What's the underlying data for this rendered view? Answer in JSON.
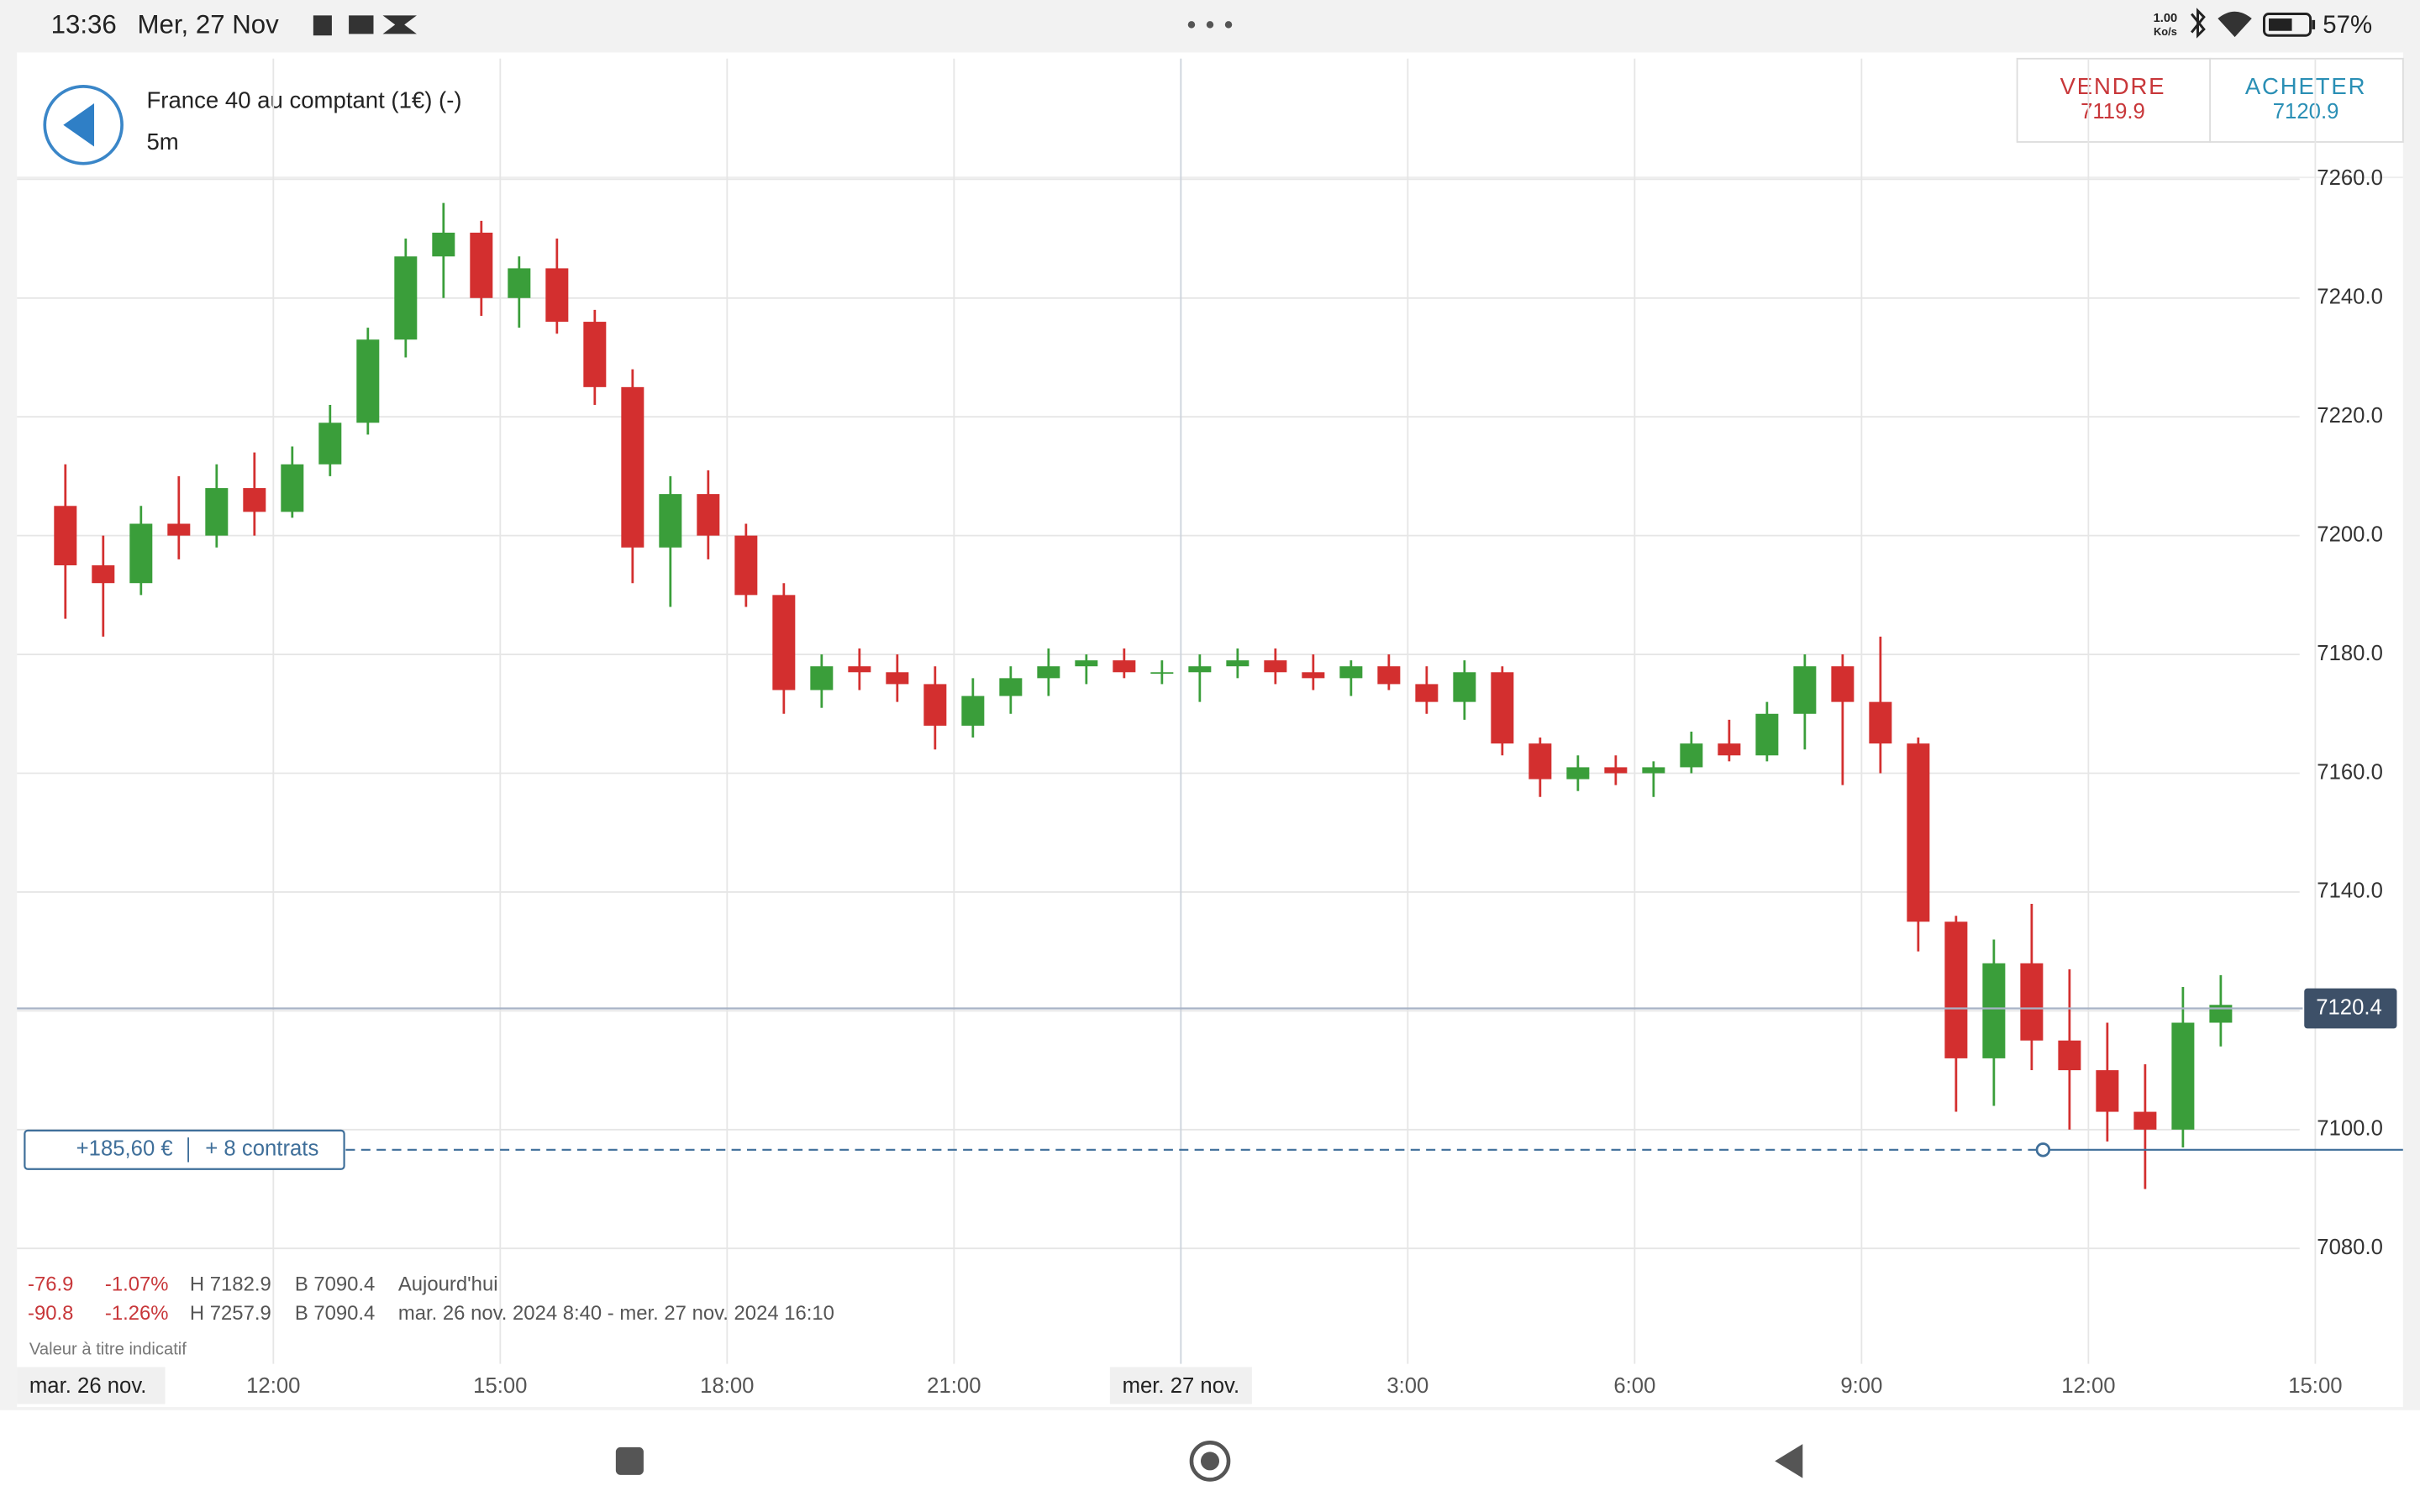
{
  "status_bar": {
    "time": "13:36",
    "date": "Mer, 27 Nov",
    "network_speed": "1.00",
    "network_unit": "Ko/s",
    "battery": "57%"
  },
  "header": {
    "title": "France 40 au comptant (1€) (-)",
    "interval": "5m",
    "sell_label": "VENDRE",
    "sell_price": "7119.9",
    "buy_label": "ACHETER",
    "buy_price": "7120.9"
  },
  "chart_data": {
    "type": "candlestick",
    "x": [
      9,
      9.5,
      10,
      10.5,
      11,
      11.5,
      12,
      12.5,
      13,
      13.5,
      14,
      14.5,
      15,
      15.5,
      16,
      16.5,
      17,
      17.5,
      18,
      18.5,
      19,
      19.5,
      20,
      20.5,
      21,
      21.5,
      22,
      22.5,
      23,
      23.5,
      24,
      24.5,
      25,
      25.5,
      26,
      26.5,
      27,
      27.5,
      28,
      28.5,
      29,
      29.5,
      30,
      30.5,
      31,
      31.5,
      32,
      32.5,
      33,
      33.5,
      34,
      34.5,
      35,
      35.5,
      36,
      36.5,
      37,
      37.5
    ],
    "open": [
      7205,
      7195,
      7192,
      7202,
      7200,
      7208,
      7204,
      7212,
      7219,
      7233,
      7247,
      7251,
      7240,
      7245,
      7236,
      7225,
      7198,
      7207,
      7200,
      7190,
      7174,
      7178,
      7177,
      7175,
      7168,
      7173,
      7176,
      7178,
      7179,
      7177,
      7177,
      7178,
      7179,
      7177,
      7176,
      7178,
      7175,
      7172,
      7177,
      7165,
      7159,
      7161,
      7160,
      7161,
      7165,
      7163,
      7170,
      7178,
      7172,
      7165,
      7135,
      7112,
      7128,
      7115,
      7110,
      7103,
      7100,
      7118
    ],
    "high": [
      7212,
      7200,
      7205,
      7210,
      7212,
      7214,
      7215,
      7222,
      7235,
      7250,
      7256,
      7253,
      7247,
      7250,
      7238,
      7228,
      7210,
      7211,
      7202,
      7192,
      7180,
      7181,
      7180,
      7178,
      7176,
      7178,
      7181,
      7180,
      7181,
      7179,
      7180,
      7181,
      7181,
      7180,
      7179,
      7180,
      7178,
      7179,
      7178,
      7166,
      7163,
      7163,
      7162,
      7167,
      7169,
      7172,
      7180,
      7180,
      7183,
      7166,
      7136,
      7132,
      7138,
      7127,
      7118,
      7111,
      7124,
      7126
    ],
    "low": [
      7186,
      7183,
      7190,
      7196,
      7198,
      7200,
      7203,
      7210,
      7217,
      7230,
      7240,
      7237,
      7235,
      7234,
      7222,
      7192,
      7188,
      7196,
      7188,
      7170,
      7171,
      7174,
      7172,
      7164,
      7166,
      7170,
      7173,
      7175,
      7176,
      7175,
      7172,
      7176,
      7175,
      7174,
      7173,
      7174,
      7170,
      7169,
      7163,
      7156,
      7157,
      7158,
      7156,
      7160,
      7162,
      7162,
      7164,
      7158,
      7160,
      7130,
      7103,
      7104,
      7110,
      7100,
      7098,
      7090,
      7097,
      7114
    ],
    "close": [
      7195,
      7192,
      7202,
      7200,
      7208,
      7204,
      7212,
      7219,
      7233,
      7247,
      7251,
      7240,
      7245,
      7236,
      7225,
      7198,
      7207,
      7200,
      7190,
      7174,
      7178,
      7177,
      7175,
      7168,
      7173,
      7176,
      7178,
      7179,
      7177,
      7177,
      7178,
      7179,
      7177,
      7176,
      7178,
      7175,
      7172,
      7177,
      7165,
      7159,
      7161,
      7160,
      7161,
      7165,
      7163,
      7170,
      7178,
      7172,
      7165,
      7135,
      7112,
      7128,
      7115,
      7110,
      7103,
      7100,
      7118,
      7121
    ],
    "up_color": "#3a9e3a",
    "down_color": "#d32f2f",
    "xlim": [
      8.61,
      40.16
    ],
    "ylim": [
      7060.3,
      7280.3
    ],
    "xticks": [
      {
        "value": 12,
        "label": "12:00"
      },
      {
        "value": 15,
        "label": "15:00"
      },
      {
        "value": 18,
        "label": "18:00"
      },
      {
        "value": 21,
        "label": "21:00"
      },
      {
        "value": 24,
        "label": "mer. 27 nov."
      },
      {
        "value": 27,
        "label": "3:00"
      },
      {
        "value": 30,
        "label": "6:00"
      },
      {
        "value": 33,
        "label": "9:00"
      },
      {
        "value": 36,
        "label": "12:00"
      },
      {
        "value": 39,
        "label": "15:00"
      }
    ],
    "yticks": [
      {
        "value": 7080,
        "label": "7080.0"
      },
      {
        "value": 7100,
        "label": "7100.0"
      },
      {
        "value": 7120,
        "label": "7120.0"
      },
      {
        "value": 7140,
        "label": "7140.0"
      },
      {
        "value": 7160,
        "label": "7160.0"
      },
      {
        "value": 7180,
        "label": "7180.0"
      },
      {
        "value": 7200,
        "label": "7200.0"
      },
      {
        "value": 7220,
        "label": "7220.0"
      },
      {
        "value": 7240,
        "label": "7240.0"
      },
      {
        "value": 7260,
        "label": "7260.0"
      }
    ],
    "grid": true,
    "start_label": "mar. 26 nov.",
    "current_price": 7120.4,
    "current_price_color": "#3d5068",
    "position": {
      "price": 7096.6,
      "profit": "+185,60 €",
      "contracts": "+ 8 contrats",
      "color": "#3f6f9a"
    }
  },
  "stats": {
    "rows": [
      [
        "-76.9",
        "-1.07%",
        "H 7182.9",
        "B 7090.4",
        "Aujourd'hui"
      ],
      [
        "-90.8",
        "-1.26%",
        "H 7257.9",
        "B 7090.4",
        "mar. 26 nov. 2024 8:40 - mer. 27 nov. 2024 16:10"
      ]
    ],
    "note": "Valeur à titre indicatif"
  }
}
